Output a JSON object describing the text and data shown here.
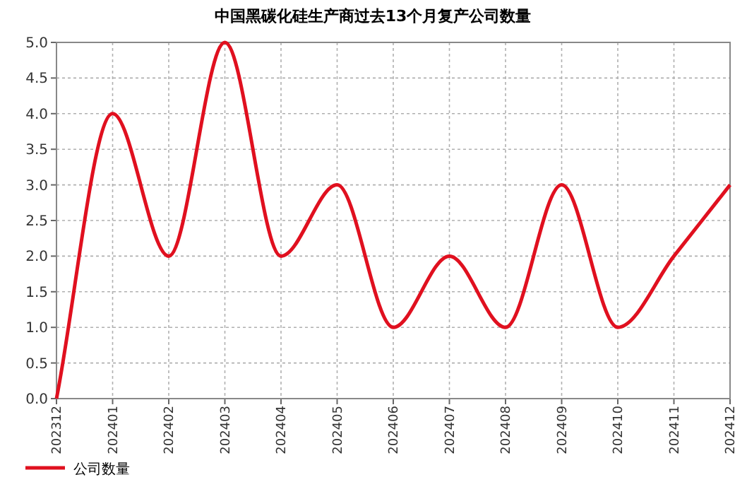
{
  "chart_data": {
    "type": "line",
    "title": "中国黑碳化硅生产商过去13个月复产公司数量",
    "categories": [
      "202312",
      "202401",
      "202402",
      "202403",
      "202404",
      "202405",
      "202406",
      "202407",
      "202408",
      "202409",
      "202410",
      "202411",
      "202412"
    ],
    "series": [
      {
        "name": "公司数量",
        "color": "#e0101f",
        "values": [
          0,
          4,
          2,
          5,
          2,
          3,
          1,
          2,
          1,
          3,
          1,
          2,
          3
        ]
      }
    ],
    "ylim": [
      0,
      5
    ],
    "yticks": [
      {
        "value": 0,
        "label": "0.0"
      },
      {
        "value": 0.5,
        "label": "0.5"
      },
      {
        "value": 1,
        "label": "1.0"
      },
      {
        "value": 1.5,
        "label": "1.5"
      },
      {
        "value": 2,
        "label": "2.0"
      },
      {
        "value": 2.5,
        "label": "2.5"
      },
      {
        "value": 3,
        "label": "3.0"
      },
      {
        "value": 3.5,
        "label": "3.5"
      },
      {
        "value": 4,
        "label": "4.0"
      },
      {
        "value": 4.5,
        "label": "4.5"
      },
      {
        "value": 5,
        "label": "5.0"
      }
    ],
    "grid": true,
    "legend": "bottom left",
    "marker": "none",
    "line_style": "solid"
  }
}
